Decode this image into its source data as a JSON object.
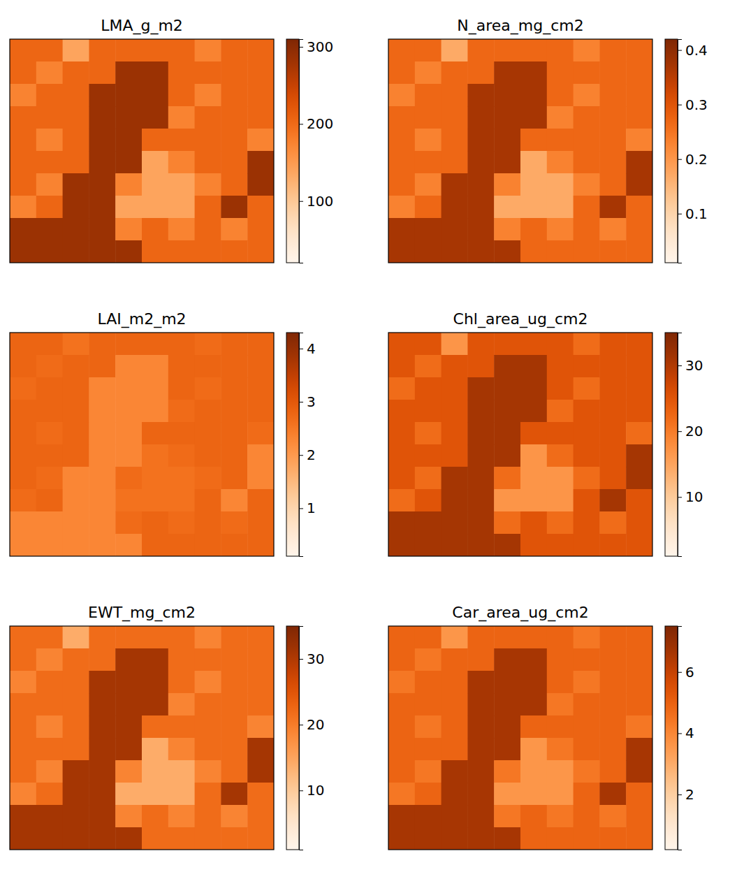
{
  "chart_data": [
    {
      "type": "heatmap",
      "title": "LMA_g_m2",
      "tick_labels": false,
      "zlim": [
        20,
        310
      ],
      "zticks": [
        100,
        200,
        300
      ],
      "cells": [
        [
          205,
          205,
          140,
          205,
          205,
          205,
          205,
          175,
          205,
          205
        ],
        [
          205,
          175,
          205,
          205,
          285,
          285,
          205,
          205,
          205,
          205
        ],
        [
          175,
          205,
          205,
          285,
          285,
          285,
          205,
          175,
          205,
          205
        ],
        [
          205,
          205,
          205,
          285,
          285,
          285,
          175,
          205,
          205,
          205
        ],
        [
          205,
          175,
          205,
          285,
          285,
          205,
          205,
          205,
          205,
          175
        ],
        [
          205,
          205,
          205,
          285,
          285,
          140,
          175,
          205,
          205,
          285
        ],
        [
          205,
          175,
          285,
          285,
          175,
          140,
          140,
          175,
          205,
          285
        ],
        [
          175,
          205,
          285,
          285,
          140,
          140,
          140,
          205,
          285,
          205
        ],
        [
          285,
          285,
          285,
          285,
          175,
          205,
          175,
          205,
          175,
          205
        ],
        [
          285,
          285,
          285,
          285,
          285,
          205,
          205,
          205,
          205,
          205
        ]
      ]
    },
    {
      "type": "heatmap",
      "title": "N_area_mg_cm2",
      "tick_labels": false,
      "zlim": [
        0.01,
        0.42
      ],
      "zticks": [
        0.1,
        0.2,
        0.3,
        0.4
      ],
      "cells": [
        [
          0.27,
          0.27,
          0.17,
          0.27,
          0.27,
          0.27,
          0.27,
          0.23,
          0.27,
          0.27
        ],
        [
          0.27,
          0.23,
          0.27,
          0.27,
          0.37,
          0.37,
          0.27,
          0.27,
          0.27,
          0.27
        ],
        [
          0.23,
          0.27,
          0.27,
          0.37,
          0.37,
          0.37,
          0.27,
          0.23,
          0.27,
          0.27
        ],
        [
          0.27,
          0.27,
          0.27,
          0.37,
          0.37,
          0.37,
          0.23,
          0.27,
          0.27,
          0.27
        ],
        [
          0.27,
          0.23,
          0.27,
          0.37,
          0.37,
          0.27,
          0.27,
          0.27,
          0.27,
          0.23
        ],
        [
          0.27,
          0.27,
          0.27,
          0.37,
          0.37,
          0.17,
          0.23,
          0.27,
          0.27,
          0.37
        ],
        [
          0.27,
          0.23,
          0.37,
          0.37,
          0.23,
          0.17,
          0.17,
          0.23,
          0.27,
          0.37
        ],
        [
          0.23,
          0.27,
          0.37,
          0.37,
          0.17,
          0.17,
          0.17,
          0.27,
          0.37,
          0.27
        ],
        [
          0.37,
          0.37,
          0.37,
          0.37,
          0.23,
          0.27,
          0.23,
          0.27,
          0.23,
          0.27
        ],
        [
          0.37,
          0.37,
          0.37,
          0.37,
          0.37,
          0.27,
          0.27,
          0.27,
          0.27,
          0.27
        ]
      ]
    },
    {
      "type": "heatmap",
      "title": "LAI_m2_m2",
      "tick_labels": false,
      "zlim": [
        0.1,
        4.3
      ],
      "zticks": [
        1,
        2,
        3,
        4
      ],
      "cells": [
        [
          2.8,
          2.8,
          2.6,
          2.8,
          2.8,
          2.8,
          2.8,
          2.7,
          2.8,
          2.8
        ],
        [
          2.8,
          2.7,
          2.8,
          2.8,
          2.3,
          2.3,
          2.8,
          2.8,
          2.8,
          2.8
        ],
        [
          2.7,
          2.8,
          2.8,
          2.3,
          2.3,
          2.3,
          2.8,
          2.7,
          2.8,
          2.8
        ],
        [
          2.8,
          2.8,
          2.8,
          2.3,
          2.3,
          2.3,
          2.7,
          2.8,
          2.8,
          2.8
        ],
        [
          2.8,
          2.7,
          2.8,
          2.3,
          2.3,
          2.8,
          2.8,
          2.8,
          2.8,
          2.7
        ],
        [
          2.8,
          2.8,
          2.8,
          2.3,
          2.3,
          2.6,
          2.7,
          2.8,
          2.8,
          2.3
        ],
        [
          2.8,
          2.7,
          2.3,
          2.3,
          2.7,
          2.6,
          2.6,
          2.7,
          2.8,
          2.3
        ],
        [
          2.7,
          2.8,
          2.3,
          2.3,
          2.6,
          2.6,
          2.6,
          2.8,
          2.3,
          2.8
        ],
        [
          2.3,
          2.3,
          2.3,
          2.3,
          2.7,
          2.8,
          2.7,
          2.8,
          2.7,
          2.8
        ],
        [
          2.3,
          2.3,
          2.3,
          2.3,
          2.3,
          2.8,
          2.8,
          2.8,
          2.8,
          2.8
        ]
      ]
    },
    {
      "type": "heatmap",
      "title": "Chl_area_ug_cm2",
      "tick_labels": false,
      "zlim": [
        1,
        35
      ],
      "zticks": [
        10,
        20,
        30
      ],
      "cells": [
        [
          25,
          25,
          17,
          25,
          25,
          25,
          25,
          22,
          25,
          25
        ],
        [
          25,
          22,
          25,
          25,
          31,
          31,
          25,
          25,
          25,
          25
        ],
        [
          22,
          25,
          25,
          31,
          31,
          31,
          25,
          22,
          25,
          25
        ],
        [
          25,
          25,
          25,
          31,
          31,
          31,
          22,
          25,
          25,
          25
        ],
        [
          25,
          22,
          25,
          31,
          31,
          25,
          25,
          25,
          25,
          22
        ],
        [
          25,
          25,
          25,
          31,
          31,
          17,
          22,
          25,
          25,
          31
        ],
        [
          25,
          22,
          31,
          31,
          22,
          17,
          17,
          22,
          25,
          31
        ],
        [
          22,
          25,
          31,
          31,
          17,
          17,
          17,
          25,
          31,
          25
        ],
        [
          31,
          31,
          31,
          31,
          22,
          25,
          22,
          25,
          22,
          25
        ],
        [
          31,
          31,
          31,
          31,
          31,
          25,
          25,
          25,
          25,
          25
        ]
      ]
    },
    {
      "type": "heatmap",
      "title": "EWT_mg_cm2",
      "tick_labels": false,
      "zlim": [
        1,
        35
      ],
      "zticks": [
        10,
        20,
        30
      ],
      "cells": [
        [
          22,
          22,
          14,
          22,
          22,
          22,
          22,
          19,
          22,
          22
        ],
        [
          22,
          19,
          22,
          22,
          31,
          31,
          22,
          22,
          22,
          22
        ],
        [
          19,
          22,
          22,
          31,
          31,
          31,
          22,
          19,
          22,
          22
        ],
        [
          22,
          22,
          22,
          31,
          31,
          31,
          19,
          22,
          22,
          22
        ],
        [
          22,
          19,
          22,
          31,
          31,
          22,
          22,
          22,
          22,
          19
        ],
        [
          22,
          22,
          22,
          31,
          31,
          14,
          19,
          22,
          22,
          31
        ],
        [
          22,
          19,
          31,
          31,
          19,
          14,
          14,
          19,
          22,
          31
        ],
        [
          19,
          22,
          31,
          31,
          14,
          14,
          14,
          22,
          31,
          22
        ],
        [
          31,
          31,
          31,
          31,
          19,
          22,
          19,
          22,
          19,
          22
        ],
        [
          31,
          31,
          31,
          31,
          31,
          22,
          22,
          22,
          22,
          22
        ]
      ]
    },
    {
      "type": "heatmap",
      "title": "Car_area_ug_cm2",
      "tick_labels": false,
      "zlim": [
        0.2,
        7.5
      ],
      "zticks": [
        2,
        4,
        6
      ],
      "cells": [
        [
          4.9,
          4.9,
          3.6,
          4.9,
          4.9,
          4.9,
          4.9,
          4.4,
          4.9,
          4.9
        ],
        [
          4.9,
          4.4,
          4.9,
          4.9,
          6.6,
          6.6,
          4.9,
          4.9,
          4.9,
          4.9
        ],
        [
          4.4,
          4.9,
          4.9,
          6.6,
          6.6,
          6.6,
          4.9,
          4.4,
          4.9,
          4.9
        ],
        [
          4.9,
          4.9,
          4.9,
          6.6,
          6.6,
          6.6,
          4.4,
          4.9,
          4.9,
          4.9
        ],
        [
          4.9,
          4.4,
          4.9,
          6.6,
          6.6,
          4.9,
          4.9,
          4.9,
          4.9,
          4.4
        ],
        [
          4.9,
          4.9,
          4.9,
          6.6,
          6.6,
          3.6,
          4.4,
          4.9,
          4.9,
          6.6
        ],
        [
          4.9,
          4.4,
          6.6,
          6.6,
          4.4,
          3.6,
          3.6,
          4.4,
          4.9,
          6.6
        ],
        [
          4.4,
          4.9,
          6.6,
          6.6,
          3.6,
          3.6,
          3.6,
          4.9,
          6.6,
          4.9
        ],
        [
          6.6,
          6.6,
          6.6,
          6.6,
          4.4,
          4.9,
          4.4,
          4.9,
          4.4,
          4.9
        ],
        [
          6.6,
          6.6,
          6.6,
          6.6,
          6.6,
          4.9,
          4.9,
          4.9,
          4.9,
          4.9
        ]
      ]
    }
  ]
}
